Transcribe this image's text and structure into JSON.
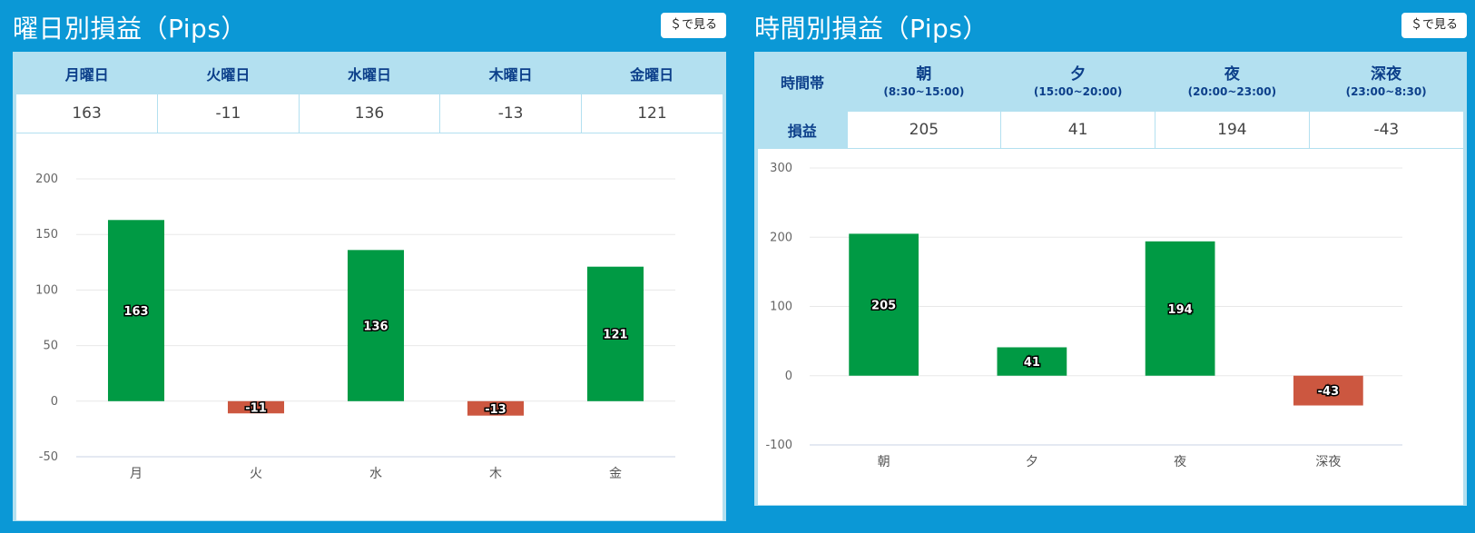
{
  "left": {
    "title": "曜日別損益（Pips）",
    "usd_button": "＄で見る",
    "table": {
      "headers": [
        "月曜日",
        "火曜日",
        "水曜日",
        "木曜日",
        "金曜日"
      ],
      "values": [
        "163",
        "-11",
        "136",
        "-13",
        "121"
      ]
    }
  },
  "right": {
    "title": "時間別損益（Pips）",
    "usd_button": "＄で見る",
    "table": {
      "row_header_1": "時間帯",
      "row_header_2": "損益",
      "columns": [
        {
          "label": "朝",
          "range": "(8:30~15:00)"
        },
        {
          "label": "夕",
          "range": "(15:00~20:00)"
        },
        {
          "label": "夜",
          "range": "(20:00~23:00)"
        },
        {
          "label": "深夜",
          "range": "(23:00~8:30)"
        }
      ],
      "values": [
        "205",
        "41",
        "194",
        "-43"
      ]
    }
  },
  "colors": {
    "positive": "#009a44",
    "negative": "#cc5740",
    "accent": "#0b98d6"
  },
  "chart_data": [
    {
      "type": "bar",
      "categories": [
        "月",
        "火",
        "水",
        "木",
        "金"
      ],
      "values": [
        163,
        -11,
        136,
        -13,
        121
      ],
      "ylim": [
        -50,
        200
      ],
      "yticks": [
        -50,
        0,
        50,
        100,
        150,
        200
      ],
      "grid": true
    },
    {
      "type": "bar",
      "categories": [
        "朝",
        "夕",
        "夜",
        "深夜"
      ],
      "values": [
        205,
        41,
        194,
        -43
      ],
      "ylim": [
        -100,
        300
      ],
      "yticks": [
        -100,
        0,
        100,
        200,
        300
      ],
      "grid": true
    }
  ]
}
